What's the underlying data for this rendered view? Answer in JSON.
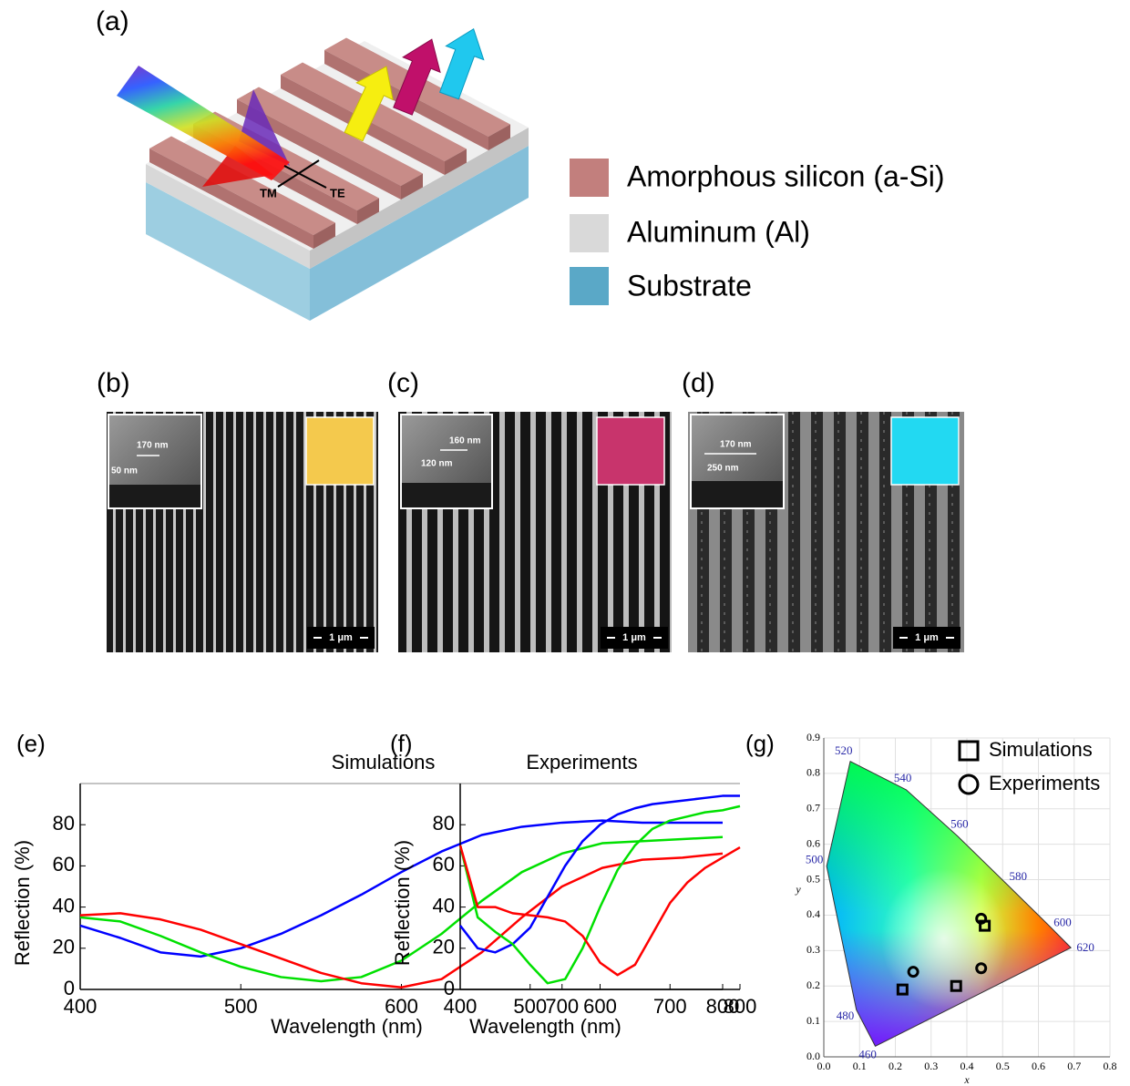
{
  "panel_labels": [
    "(a)",
    "(b)",
    "(c)",
    "(d)",
    "(e)",
    "(f)",
    "(g)"
  ],
  "structure": {
    "polarization": {
      "tm": "TM",
      "te": "TE"
    },
    "legend": [
      {
        "label": "Amorphous silicon (a-Si)",
        "color": "#c27f7d"
      },
      {
        "label": "Aluminum (Al)",
        "color": "#d9d9d9"
      },
      {
        "label": "Substrate",
        "color": "#5aa8c7"
      }
    ]
  },
  "sem": [
    {
      "dims": [
        "170 nm",
        "50 nm"
      ],
      "scale_bar": "1 μm",
      "swatch": "#f4c94d"
    },
    {
      "dims": [
        "160 nm",
        "120 nm"
      ],
      "scale_bar": "1 μm",
      "swatch": "#c8346c"
    },
    {
      "dims": [
        "170 nm",
        "250 nm"
      ],
      "scale_bar": "1 μm",
      "swatch": "#22d9f2"
    }
  ],
  "chart_data": [
    {
      "type": "line",
      "title": "Simulations",
      "x_label": "Wavelength (nm)",
      "y_label": "Reflection (%)",
      "x": [
        400,
        425,
        450,
        475,
        500,
        525,
        550,
        575,
        600,
        625,
        650,
        675,
        700,
        725,
        750,
        775,
        800
      ],
      "xlim": [
        400,
        800
      ],
      "ylim": [
        0,
        100
      ],
      "xticks": [
        400,
        500,
        600,
        700,
        800
      ],
      "yticks": [
        0,
        20,
        40,
        60,
        80
      ],
      "series": [
        {
          "color": "#0000ff",
          "values": [
            31,
            25,
            18,
            16,
            20,
            27,
            36,
            46,
            57,
            67,
            75,
            79,
            81,
            82,
            81,
            81,
            81
          ]
        },
        {
          "color": "#00e000",
          "values": [
            35,
            33,
            26,
            18,
            11,
            6,
            4,
            6,
            14,
            27,
            43,
            57,
            66,
            71,
            72,
            73,
            74
          ]
        },
        {
          "color": "#ff0000",
          "values": [
            36,
            37,
            34,
            29,
            22,
            15,
            8,
            3,
            1,
            5,
            18,
            35,
            50,
            59,
            63,
            64,
            66
          ]
        }
      ]
    },
    {
      "type": "line",
      "title": "Experiments",
      "x_label": "Wavelength (nm)",
      "y_label": "Reflection (%)",
      "x": [
        400,
        425,
        450,
        475,
        500,
        525,
        550,
        575,
        600,
        625,
        650,
        675,
        700,
        725,
        750,
        775,
        800
      ],
      "xlim": [
        400,
        800
      ],
      "ylim": [
        0,
        100
      ],
      "xticks": [
        400,
        500,
        600,
        700,
        800
      ],
      "yticks": [
        0,
        20,
        40,
        60,
        80
      ],
      "series": [
        {
          "color": "#0000ff",
          "values": [
            31,
            20,
            18,
            22,
            30,
            45,
            60,
            72,
            80,
            85,
            88,
            90,
            91,
            92,
            93,
            94,
            94
          ]
        },
        {
          "color": "#00e000",
          "values": [
            70,
            35,
            28,
            22,
            12,
            3,
            5,
            20,
            40,
            58,
            70,
            78,
            82,
            84,
            86,
            87,
            89
          ]
        },
        {
          "color": "#ff0000",
          "values": [
            70,
            40,
            40,
            37,
            36,
            35,
            33,
            26,
            13,
            7,
            12,
            27,
            42,
            52,
            59,
            64,
            69
          ]
        }
      ]
    },
    {
      "type": "scatter",
      "x_label": "x",
      "y_label": "y",
      "xlim": [
        0,
        0.8
      ],
      "ylim": [
        0,
        0.9
      ],
      "xticks": [
        {
          "value": 0,
          "label": "0.0"
        },
        0.1,
        0.2,
        0.3,
        0.4,
        0.5,
        0.6,
        0.7,
        0.8
      ],
      "yticks": [
        {
          "value": 0,
          "label": "0.0"
        },
        0.1,
        0.2,
        0.3,
        0.4,
        0.5,
        0.6,
        0.7,
        0.8,
        0.9
      ],
      "grid": true,
      "legend": "upper right",
      "locus": {
        "wavelengths": [
          460,
          480,
          500,
          520,
          540,
          560,
          580,
          600,
          620
        ],
        "x": [
          0.144,
          0.091,
          0.008,
          0.074,
          0.23,
          0.373,
          0.512,
          0.627,
          0.691
        ],
        "y": [
          0.03,
          0.133,
          0.538,
          0.834,
          0.754,
          0.624,
          0.487,
          0.373,
          0.308
        ]
      },
      "series": [
        {
          "name": "Simulations",
          "marker": "square",
          "x": [
            0.22,
            0.37,
            0.45
          ],
          "y": [
            0.19,
            0.2,
            0.37
          ]
        },
        {
          "name": "Experiments",
          "marker": "circle",
          "x": [
            0.25,
            0.44,
            0.44
          ],
          "y": [
            0.24,
            0.25,
            0.39
          ]
        }
      ]
    }
  ]
}
